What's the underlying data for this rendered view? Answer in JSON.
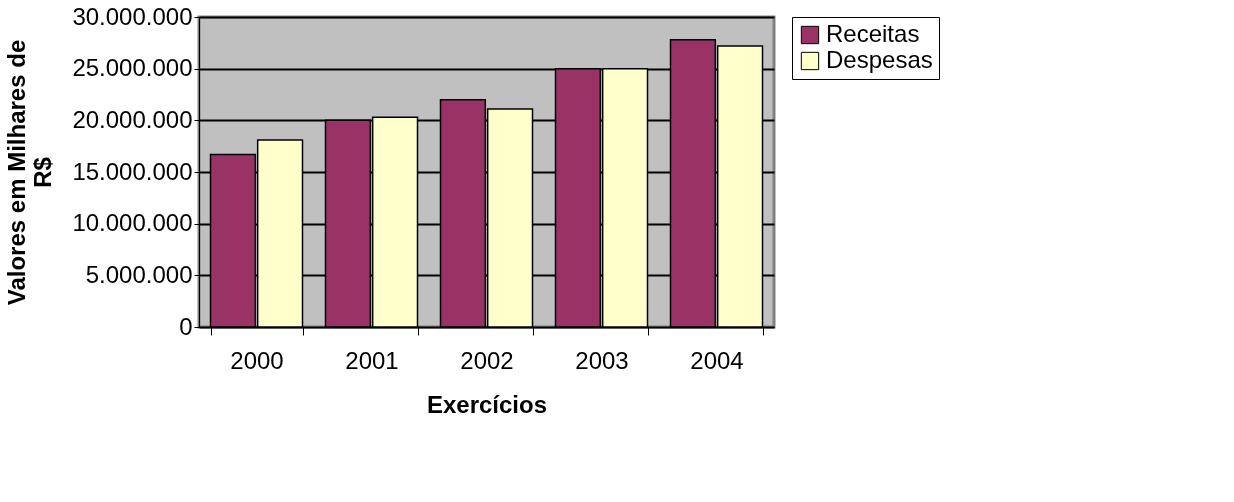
{
  "chart_data": {
    "type": "bar",
    "xlabel": "Exercícios",
    "ylabel": "Valores em Milhares de R$",
    "categories": [
      "2000",
      "2001",
      "2002",
      "2003",
      "2004"
    ],
    "series": [
      {
        "name": "Receitas",
        "color": "#993366",
        "values": [
          16700000,
          20000000,
          22000000,
          25000000,
          27800000
        ]
      },
      {
        "name": "Despesas",
        "color": "#ffffcc",
        "values": [
          18100000,
          20300000,
          21100000,
          25000000,
          27200000
        ]
      }
    ],
    "ylim": [
      0,
      30000000
    ],
    "yticks": [
      {
        "value": 0,
        "label": "0"
      },
      {
        "value": 5000000,
        "label": "5.000.000"
      },
      {
        "value": 10000000,
        "label": "10.000.000"
      },
      {
        "value": 15000000,
        "label": "15.000.000"
      },
      {
        "value": 20000000,
        "label": "20.000.000"
      },
      {
        "value": 25000000,
        "label": "25.000.000"
      },
      {
        "value": 30000000,
        "label": "30.000.000"
      }
    ],
    "grid": "y",
    "legend": "right"
  }
}
